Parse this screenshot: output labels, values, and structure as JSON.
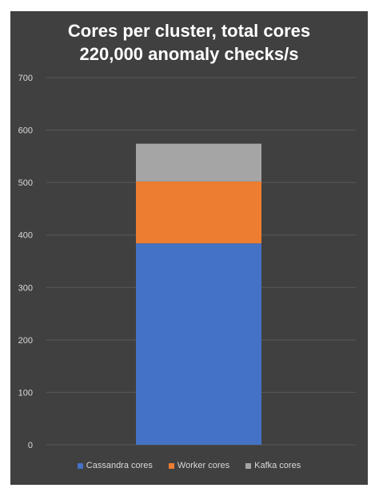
{
  "chart_data": {
    "type": "bar",
    "stacked": true,
    "title_lines": [
      "Cores per cluster, total cores",
      "220,000 anomaly checks/s"
    ],
    "xlabel": "",
    "ylabel": "",
    "ylim": [
      0,
      700
    ],
    "yticks": [
      0,
      100,
      200,
      300,
      400,
      500,
      600,
      700
    ],
    "grid": true,
    "legend_position": "bottom",
    "categories": [
      ""
    ],
    "series": [
      {
        "name": "Cassandra cores",
        "values": [
          384
        ],
        "color": "#4472c4"
      },
      {
        "name": "Worker cores",
        "values": [
          118
        ],
        "color": "#ed7d31"
      },
      {
        "name": "Kafka cores",
        "values": [
          72
        ],
        "color": "#a5a5a5"
      }
    ]
  },
  "colors": {
    "background": "#404040",
    "gridline": "#595959",
    "tick_label": "#d9d9d9",
    "title": "#ffffff"
  }
}
